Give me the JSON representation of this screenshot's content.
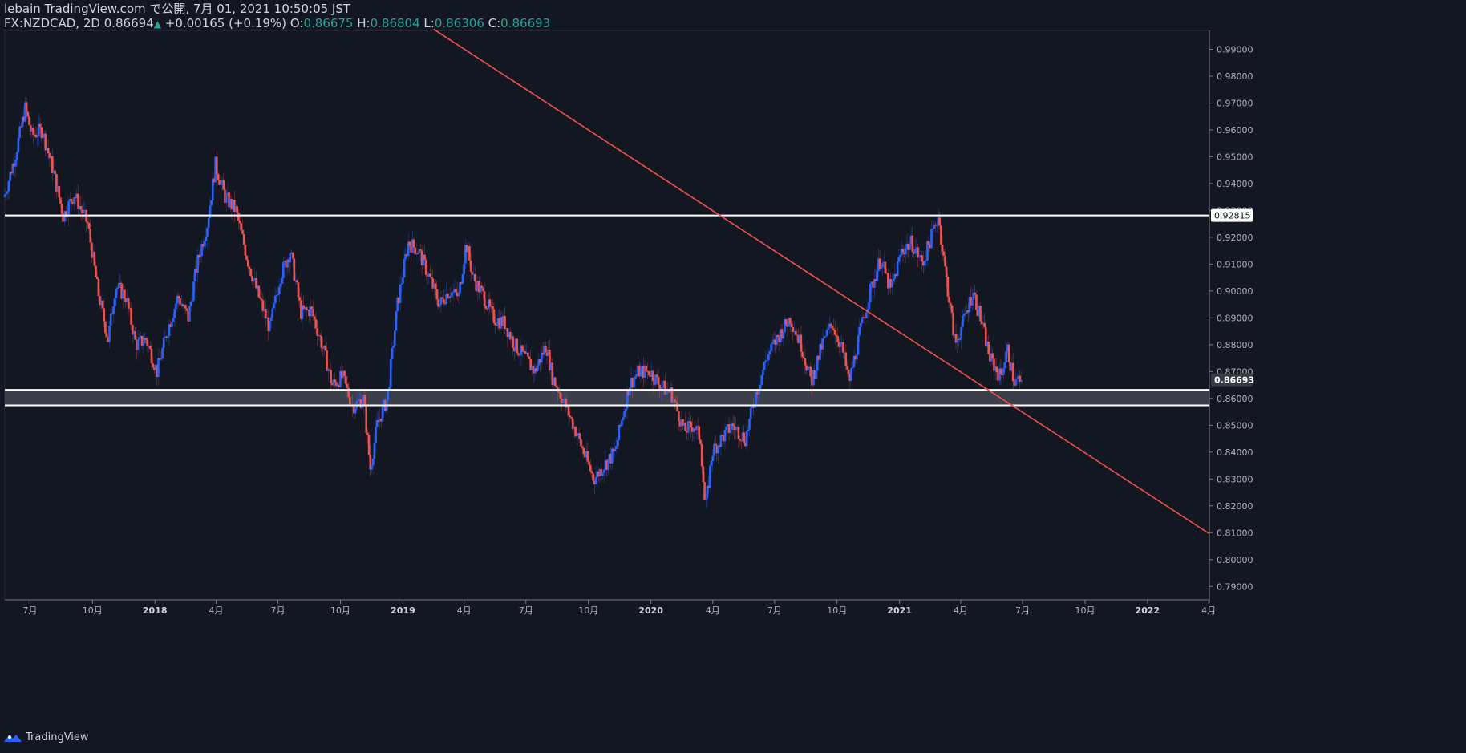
{
  "header": {
    "publisher": "lebain TradingView.com で公開, 7月 01, 2021 10:50:05 JST",
    "symbol": "FX:NZDCAD, 2D",
    "last": "0.86694",
    "up_arrow": "▲",
    "change": "+0.00165 (+0.19%)",
    "o_label": "O:",
    "o_value": "0.86675",
    "h_label": "H:",
    "h_value": "0.86804",
    "l_label": "L:",
    "l_value": "0.86306",
    "c_label": "C:",
    "c_value": "0.86693"
  },
  "footer": {
    "brand": "TradingView",
    "logo_icon": "tradingview-logo-icon"
  },
  "colors": {
    "background": "#131722",
    "up": "#2962ff",
    "down": "#ef5350",
    "trendline": "#f0514e",
    "level": "#ffffff",
    "zone": "#434651",
    "axis_text": "#b2b5be"
  },
  "chart_data": {
    "type": "candlestick",
    "symbol": "FX:NZDCAD",
    "timeframe": "2D",
    "ylim": [
      0.785,
      0.997
    ],
    "y_ticks": [
      "0.79000",
      "0.80000",
      "0.81000",
      "0.82000",
      "0.83000",
      "0.84000",
      "0.85000",
      "0.86000",
      "0.87000",
      "0.88000",
      "0.89000",
      "0.90000",
      "0.91000",
      "0.92000",
      "0.93000",
      "0.94000",
      "0.95000",
      "0.96000",
      "0.97000",
      "0.98000",
      "0.99000"
    ],
    "x_start": "2017-05-25",
    "x_end": "2022-04-02",
    "x_ticks": [
      {
        "date": "2017-07-01",
        "label": "7月",
        "bold": false
      },
      {
        "date": "2017-10-01",
        "label": "10月",
        "bold": false
      },
      {
        "date": "2018-01-01",
        "label": "2018",
        "bold": true
      },
      {
        "date": "2018-04-01",
        "label": "4月",
        "bold": false
      },
      {
        "date": "2018-07-01",
        "label": "7月",
        "bold": false
      },
      {
        "date": "2018-10-01",
        "label": "10月",
        "bold": false
      },
      {
        "date": "2019-01-01",
        "label": "2019",
        "bold": true
      },
      {
        "date": "2019-04-01",
        "label": "4月",
        "bold": false
      },
      {
        "date": "2019-07-01",
        "label": "7月",
        "bold": false
      },
      {
        "date": "2019-10-01",
        "label": "10月",
        "bold": false
      },
      {
        "date": "2020-01-01",
        "label": "2020",
        "bold": true
      },
      {
        "date": "2020-04-01",
        "label": "4月",
        "bold": false
      },
      {
        "date": "2020-07-01",
        "label": "7月",
        "bold": false
      },
      {
        "date": "2020-10-01",
        "label": "10月",
        "bold": false
      },
      {
        "date": "2021-01-01",
        "label": "2021",
        "bold": true
      },
      {
        "date": "2021-04-01",
        "label": "4月",
        "bold": false
      },
      {
        "date": "2021-07-01",
        "label": "7月",
        "bold": false
      },
      {
        "date": "2021-10-01",
        "label": "10月",
        "bold": false
      },
      {
        "date": "2022-01-01",
        "label": "2022",
        "bold": true
      },
      {
        "date": "2022-04-01",
        "label": "4月",
        "bold": false
      }
    ],
    "anchors": [
      [
        "2017-05-25",
        0.935
      ],
      [
        "2017-06-10",
        0.95
      ],
      [
        "2017-06-25",
        0.968
      ],
      [
        "2017-07-05",
        0.958
      ],
      [
        "2017-07-20",
        0.96
      ],
      [
        "2017-08-05",
        0.945
      ],
      [
        "2017-08-20",
        0.928
      ],
      [
        "2017-09-05",
        0.936
      ],
      [
        "2017-09-25",
        0.925
      ],
      [
        "2017-10-10",
        0.9
      ],
      [
        "2017-10-25",
        0.882
      ],
      [
        "2017-11-05",
        0.902
      ],
      [
        "2017-11-20",
        0.898
      ],
      [
        "2017-12-05",
        0.88
      ],
      [
        "2017-12-20",
        0.882
      ],
      [
        "2018-01-05",
        0.87
      ],
      [
        "2018-01-20",
        0.885
      ],
      [
        "2018-02-05",
        0.898
      ],
      [
        "2018-02-20",
        0.89
      ],
      [
        "2018-03-05",
        0.91
      ],
      [
        "2018-03-20",
        0.925
      ],
      [
        "2018-04-01",
        0.947
      ],
      [
        "2018-04-15",
        0.935
      ],
      [
        "2018-05-01",
        0.93
      ],
      [
        "2018-05-20",
        0.91
      ],
      [
        "2018-06-05",
        0.897
      ],
      [
        "2018-06-20",
        0.886
      ],
      [
        "2018-07-05",
        0.905
      ],
      [
        "2018-07-20",
        0.915
      ],
      [
        "2018-08-05",
        0.892
      ],
      [
        "2018-08-20",
        0.893
      ],
      [
        "2018-09-05",
        0.88
      ],
      [
        "2018-09-20",
        0.865
      ],
      [
        "2018-10-05",
        0.868
      ],
      [
        "2018-10-20",
        0.857
      ],
      [
        "2018-11-05",
        0.86
      ],
      [
        "2018-11-15",
        0.834
      ],
      [
        "2018-11-25",
        0.85
      ],
      [
        "2018-12-10",
        0.86
      ],
      [
        "2018-12-25",
        0.895
      ],
      [
        "2019-01-10",
        0.918
      ],
      [
        "2019-01-25",
        0.915
      ],
      [
        "2019-02-10",
        0.905
      ],
      [
        "2019-02-25",
        0.895
      ],
      [
        "2019-03-10",
        0.9
      ],
      [
        "2019-03-25",
        0.898
      ],
      [
        "2019-04-05",
        0.918
      ],
      [
        "2019-04-15",
        0.905
      ],
      [
        "2019-05-01",
        0.898
      ],
      [
        "2019-05-15",
        0.89
      ],
      [
        "2019-06-01",
        0.888
      ],
      [
        "2019-06-15",
        0.88
      ],
      [
        "2019-07-01",
        0.875
      ],
      [
        "2019-07-15",
        0.87
      ],
      [
        "2019-08-01",
        0.88
      ],
      [
        "2019-08-10",
        0.868
      ],
      [
        "2019-08-25",
        0.86
      ],
      [
        "2019-09-10",
        0.85
      ],
      [
        "2019-09-25",
        0.84
      ],
      [
        "2019-10-10",
        0.83
      ],
      [
        "2019-10-25",
        0.835
      ],
      [
        "2019-11-10",
        0.84
      ],
      [
        "2019-12-01",
        0.865
      ],
      [
        "2019-12-15",
        0.87
      ],
      [
        "2020-01-01",
        0.87
      ],
      [
        "2020-01-15",
        0.865
      ],
      [
        "2020-02-01",
        0.862
      ],
      [
        "2020-02-20",
        0.848
      ],
      [
        "2020-03-05",
        0.85
      ],
      [
        "2020-03-15",
        0.845
      ],
      [
        "2020-03-22",
        0.818
      ],
      [
        "2020-04-01",
        0.84
      ],
      [
        "2020-04-15",
        0.845
      ],
      [
        "2020-05-01",
        0.85
      ],
      [
        "2020-05-20",
        0.845
      ],
      [
        "2020-06-05",
        0.862
      ],
      [
        "2020-06-20",
        0.875
      ],
      [
        "2020-07-05",
        0.882
      ],
      [
        "2020-07-25",
        0.89
      ],
      [
        "2020-08-10",
        0.88
      ],
      [
        "2020-08-25",
        0.866
      ],
      [
        "2020-09-10",
        0.88
      ],
      [
        "2020-09-25",
        0.888
      ],
      [
        "2020-10-10",
        0.878
      ],
      [
        "2020-10-20",
        0.866
      ],
      [
        "2020-11-05",
        0.885
      ],
      [
        "2020-11-20",
        0.9
      ],
      [
        "2020-12-05",
        0.912
      ],
      [
        "2020-12-20",
        0.9
      ],
      [
        "2021-01-05",
        0.915
      ],
      [
        "2021-01-20",
        0.918
      ],
      [
        "2021-02-05",
        0.91
      ],
      [
        "2021-02-20",
        0.922
      ],
      [
        "2021-02-28",
        0.928
      ],
      [
        "2021-03-10",
        0.908
      ],
      [
        "2021-03-25",
        0.88
      ],
      [
        "2021-04-05",
        0.888
      ],
      [
        "2021-04-20",
        0.9
      ],
      [
        "2021-05-01",
        0.89
      ],
      [
        "2021-05-15",
        0.875
      ],
      [
        "2021-05-30",
        0.868
      ],
      [
        "2021-06-10",
        0.878
      ],
      [
        "2021-06-20",
        0.866
      ],
      [
        "2021-06-30",
        0.8669
      ]
    ],
    "last_close": 0.86693,
    "levels": [
      {
        "name": "resistance",
        "price": 0.92815,
        "label": "0.92815"
      },
      {
        "name": "support-top",
        "price": 0.8632
      },
      {
        "name": "support-bottom",
        "price": 0.8574
      }
    ],
    "last_price_label": "0.86693",
    "trendline": {
      "start": {
        "date": "2019-02-15",
        "price": 0.9975
      },
      "end": {
        "date": "2022-04-02",
        "price": 0.8096
      }
    }
  }
}
